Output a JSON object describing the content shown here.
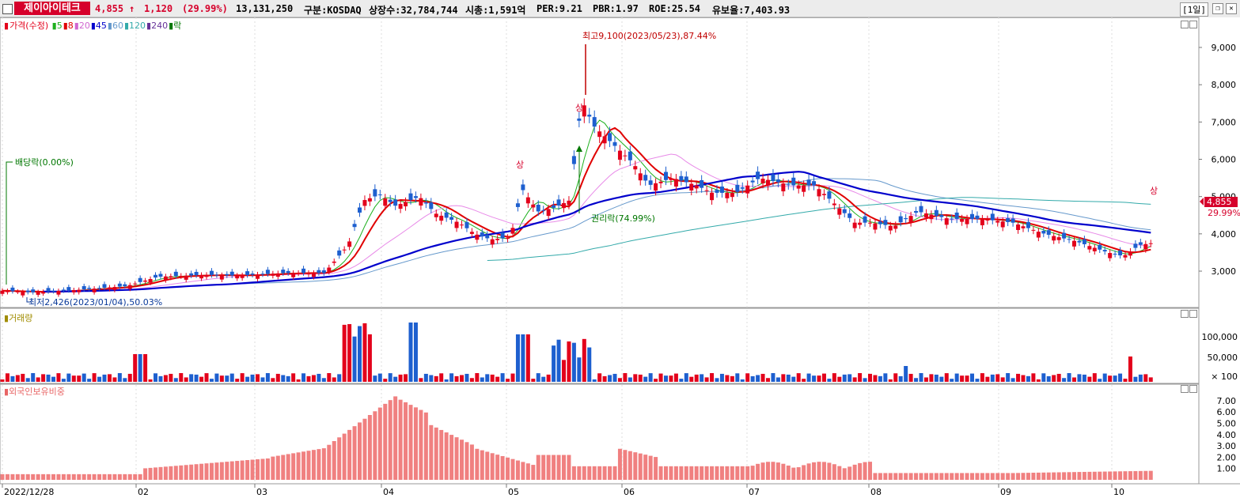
{
  "header": {
    "name": "제이아이테크",
    "price": "4,855",
    "arrow": "↑",
    "change": "1,120",
    "change_pct": "(29.99%)",
    "volume": "13,131,250",
    "market": "구분:KOSDAQ",
    "shares": "상장수:32,784,744",
    "mcap": "시총:1,591억",
    "per": "PER:9.21",
    "pbr": "PBR:1.97",
    "roe": "ROE:25.54",
    "float": "유보율:7,403.93",
    "period": "[1일]"
  },
  "legend": {
    "price_label": "가격(수정)",
    "ma": [
      {
        "label": "5",
        "color": "#1db01d"
      },
      {
        "label": "8",
        "color": "#e00000"
      },
      {
        "label": "20",
        "color": "#d066d0"
      },
      {
        "label": "45",
        "color": "#0000cc"
      },
      {
        "label": "60",
        "color": "#6699cc"
      },
      {
        "label": "120",
        "color": "#33aaaa"
      },
      {
        "label": "240",
        "color": "#663399"
      },
      {
        "label": "락",
        "color": "#007700"
      }
    ],
    "volume_label": "거래량",
    "foreign_label": "외국인보유비중"
  },
  "annotations": {
    "high": "최고9,100(2023/05/23),87.44%",
    "low": "최저2,426(2023/01/04),50.03%",
    "dividend": "배당락(0.00%)",
    "rights": "권리락(74.99%)",
    "limit_up": "상",
    "last_price": "4,855",
    "last_pct": "29.99%"
  },
  "axes": {
    "price_ticks": [
      "9,000",
      "8,000",
      "7,000",
      "6,000",
      "5,000",
      "4,000",
      "3,000"
    ],
    "volume_ticks": [
      "100,000",
      "50,000",
      "× 100"
    ],
    "foreign_ticks": [
      "7.00",
      "6.00",
      "5.00",
      "4.00",
      "3.00",
      "2.00",
      "1.00"
    ],
    "x_labels": [
      "2022/12/28",
      "02",
      "03",
      "04",
      "05",
      "06",
      "07",
      "08",
      "09",
      "10"
    ]
  },
  "colors": {
    "up": "#e3001b",
    "down": "#1d5fcf",
    "foreign": "#f08080"
  }
}
